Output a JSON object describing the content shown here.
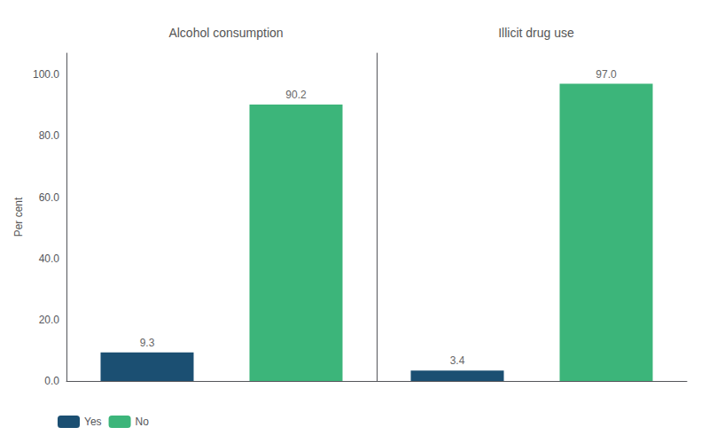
{
  "chart_data": [
    {
      "type": "bar",
      "title": "Alcohol consumption",
      "series": [
        {
          "name": "Yes",
          "color": "#1b4f72",
          "values": [
            9.3
          ],
          "value_labels": [
            "9.3"
          ]
        },
        {
          "name": "No",
          "color": "#3cb57a",
          "values": [
            90.2
          ],
          "value_labels": [
            "90.2"
          ]
        }
      ],
      "ylabel": "Per cent",
      "ylim": [
        0,
        107
      ],
      "yticks": [
        {
          "value": 0,
          "label": "0.0"
        },
        {
          "value": 20,
          "label": "20.0"
        },
        {
          "value": 40,
          "label": "40.0"
        },
        {
          "value": 60,
          "label": "60.0"
        },
        {
          "value": 80,
          "label": "80.0"
        },
        {
          "value": 100,
          "label": "100.0"
        }
      ],
      "data_labels": true,
      "grid": false,
      "tick_labels": "y",
      "legend": "lower left"
    },
    {
      "type": "bar",
      "title": "Illicit drug use",
      "series": [
        {
          "name": "Yes",
          "color": "#1b4f72",
          "values": [
            3.4
          ],
          "value_labels": [
            "3.4"
          ]
        },
        {
          "name": "No",
          "color": "#3cb57a",
          "values": [
            97.0
          ],
          "value_labels": [
            "97.0"
          ]
        }
      ],
      "ylim": [
        0,
        107
      ],
      "yticks": [
        {
          "value": 0,
          "label": "0.0"
        },
        {
          "value": 20,
          "label": "20.0"
        },
        {
          "value": 40,
          "label": "40.0"
        },
        {
          "value": 60,
          "label": "60.0"
        },
        {
          "value": 80,
          "label": "80.0"
        },
        {
          "value": 100,
          "label": "100.0"
        }
      ],
      "data_labels": true,
      "grid": false,
      "tick_labels": false
    }
  ]
}
